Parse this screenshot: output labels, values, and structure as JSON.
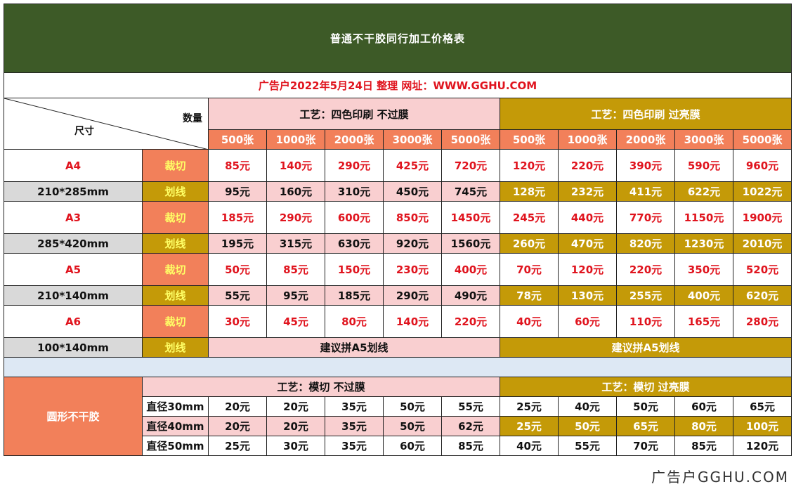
{
  "title": "普通不干胶同行加工价格表",
  "subtitle": "广告户2022年5月24日 整理 网址：WWW.GGHU.COM",
  "corner": {
    "quantity_label": "数量",
    "size_label": "尺寸"
  },
  "process_headers": {
    "no_film": "工艺：四色印刷 不过膜",
    "gloss_film": "工艺：四色印刷 过亮膜"
  },
  "quantities": [
    "500张",
    "1000张",
    "2000张",
    "3000张",
    "5000张"
  ],
  "sizes": [
    {
      "name": "A4",
      "dims": "210*285mm",
      "cut_label": "裁切",
      "line_label": "划线",
      "cut_no_film": [
        "85元",
        "140元",
        "290元",
        "425元",
        "720元"
      ],
      "cut_gloss": [
        "120元",
        "220元",
        "390元",
        "590元",
        "960元"
      ],
      "line_no_film": [
        "95元",
        "160元",
        "310元",
        "450元",
        "745元"
      ],
      "line_gloss": [
        "128元",
        "232元",
        "411元",
        "622元",
        "1022元"
      ]
    },
    {
      "name": "A3",
      "dims": "285*420mm",
      "cut_label": "裁切",
      "line_label": "划线",
      "cut_no_film": [
        "185元",
        "290元",
        "600元",
        "850元",
        "1450元"
      ],
      "cut_gloss": [
        "245元",
        "440元",
        "770元",
        "1150元",
        "1900元"
      ],
      "line_no_film": [
        "195元",
        "315元",
        "630元",
        "920元",
        "1560元"
      ],
      "line_gloss": [
        "260元",
        "470元",
        "820元",
        "1230元",
        "2010元"
      ]
    },
    {
      "name": "A5",
      "dims": "210*140mm",
      "cut_label": "裁切",
      "line_label": "划线",
      "cut_no_film": [
        "50元",
        "85元",
        "150元",
        "230元",
        "400元"
      ],
      "cut_gloss": [
        "70元",
        "120元",
        "220元",
        "350元",
        "520元"
      ],
      "line_no_film": [
        "55元",
        "95元",
        "185元",
        "290元",
        "490元"
      ],
      "line_gloss": [
        "78元",
        "130元",
        "255元",
        "400元",
        "620元"
      ]
    },
    {
      "name": "A6",
      "dims": "100*140mm",
      "cut_label": "裁切",
      "line_label": "划线",
      "cut_no_film": [
        "30元",
        "45元",
        "80元",
        "140元",
        "220元"
      ],
      "cut_gloss": [
        "40元",
        "60元",
        "110元",
        "165元",
        "280元"
      ],
      "line_note_no_film": "建议拼A5划线",
      "line_note_gloss": "建议拼A5划线"
    }
  ],
  "round": {
    "label": "圆形不干胶",
    "header_no_film": "工艺：模切 不过膜",
    "header_gloss": "工艺：模切 过亮膜",
    "rows": [
      {
        "diameter": "直径30mm",
        "no_film": [
          "20元",
          "20元",
          "35元",
          "50元",
          "55元"
        ],
        "gloss": [
          "25元",
          "40元",
          "50元",
          "60元",
          "65元"
        ]
      },
      {
        "diameter": "直径40mm",
        "no_film": [
          "20元",
          "20元",
          "35元",
          "50元",
          "62元"
        ],
        "gloss": [
          "25元",
          "50元",
          "65元",
          "80元",
          "100元"
        ]
      },
      {
        "diameter": "直径50mm",
        "no_film": [
          "25元",
          "30元",
          "35元",
          "60元",
          "85元"
        ],
        "gloss": [
          "40元",
          "55元",
          "70元",
          "85元",
          "120元"
        ]
      }
    ]
  },
  "watermark": "广告户GGHU.COM",
  "colors": {
    "title_bg": "#3d5a27",
    "accent_red": "#e0141e",
    "pink": "#f9cfd0",
    "gold": "#c49a08",
    "orange": "#f2805a",
    "grey": "#d9d9d9",
    "spacer": "#dde8f4"
  }
}
